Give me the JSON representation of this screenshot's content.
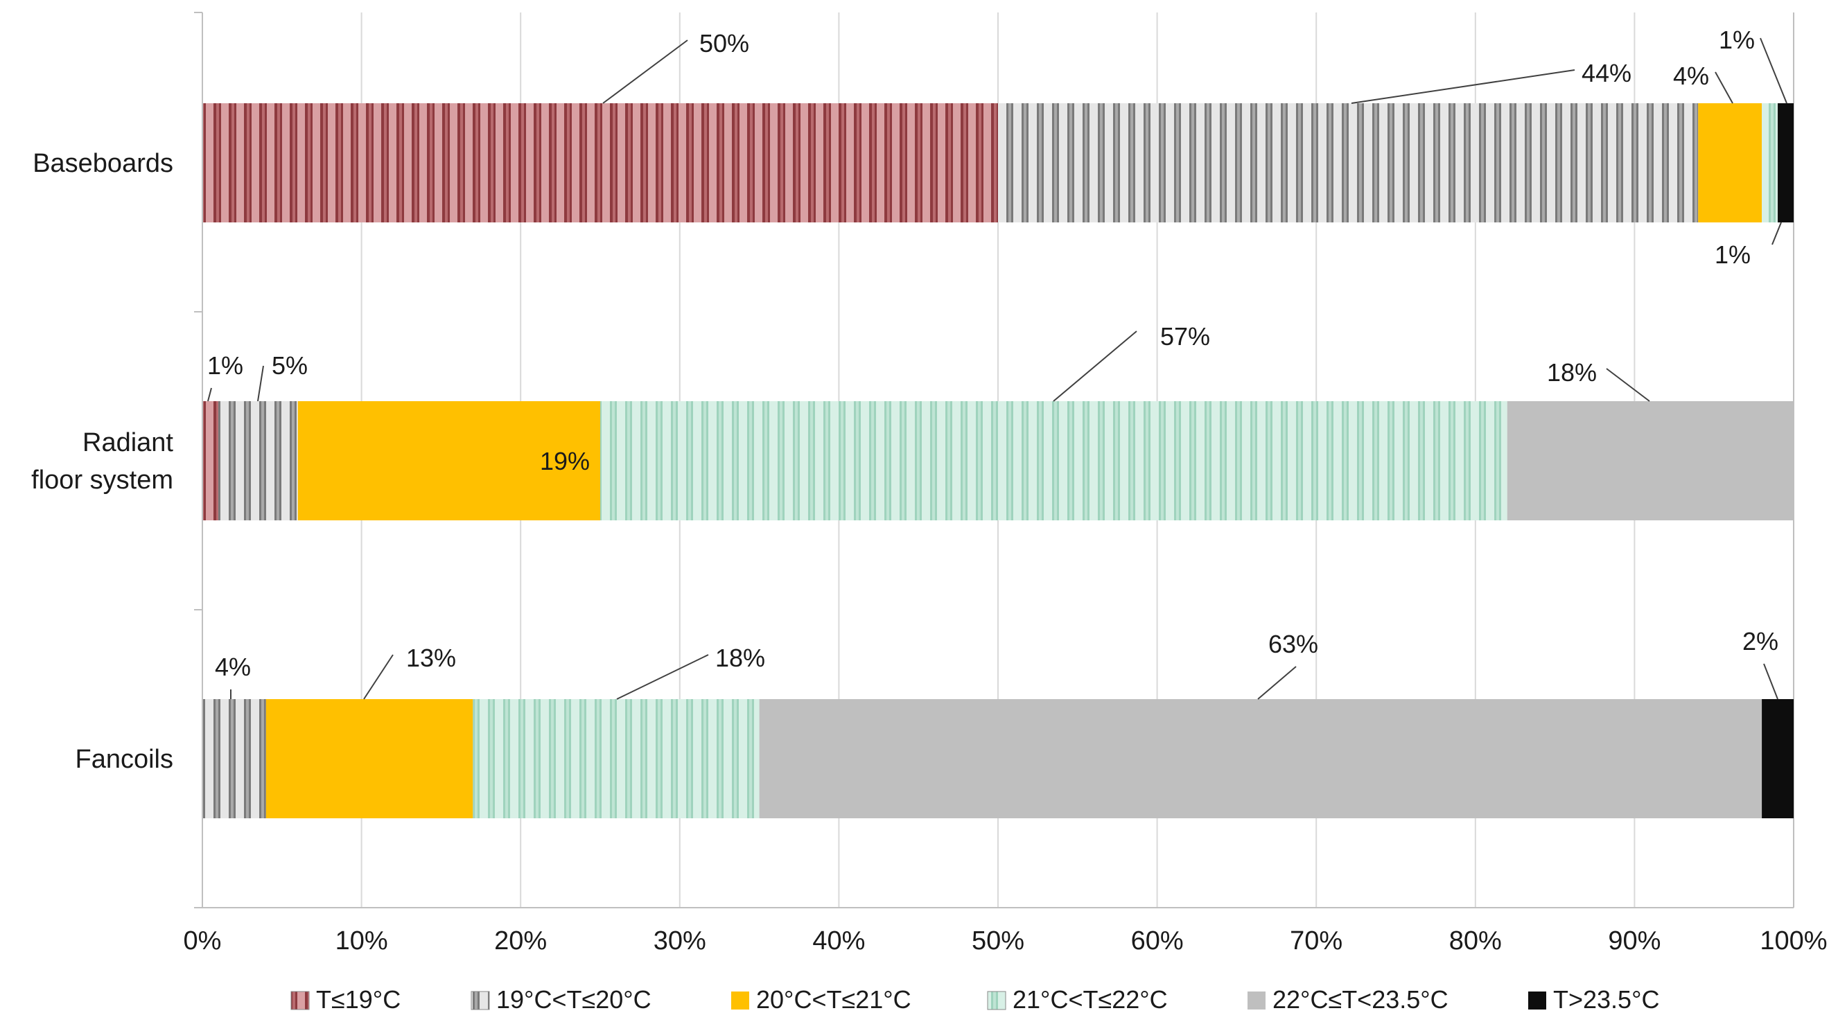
{
  "chart_data": {
    "type": "bar",
    "orientation": "horizontal",
    "stacked": true,
    "percent": true,
    "categories": [
      "Baseboards",
      "Radiant\nfloor system",
      "Fancoils"
    ],
    "xlim": [
      0,
      100
    ],
    "xticks": [
      "0%",
      "10%",
      "20%",
      "30%",
      "40%",
      "50%",
      "60%",
      "70%",
      "80%",
      "90%",
      "100%"
    ],
    "grid": true,
    "legend_position": "bottom",
    "series": [
      {
        "name": "T≤19°C",
        "color": "#a8555a",
        "pattern": "stripes-red",
        "values": [
          50,
          1,
          0
        ]
      },
      {
        "name": "19°C<T≤20°C",
        "color": "#9a9a9a",
        "pattern": "stripes-gray",
        "values": [
          44,
          5,
          4
        ]
      },
      {
        "name": "20°C<T≤21°C",
        "color": "#ffc000",
        "pattern": "solid",
        "values": [
          4,
          19,
          13
        ]
      },
      {
        "name": "21°C<T≤22°C",
        "color": "#b9e3d2",
        "pattern": "stripes-green",
        "values": [
          1,
          57,
          18
        ]
      },
      {
        "name": "22°C≤T<23.5°C",
        "color": "#bfbfbf",
        "pattern": "solid",
        "values": [
          0,
          18,
          63
        ]
      },
      {
        "name": "T>23.5°C",
        "color": "#0d0d0d",
        "pattern": "solid",
        "values": [
          1,
          0,
          2
        ]
      }
    ],
    "data_labels": [
      {
        "text": "50%",
        "category": 0,
        "series": 0
      },
      {
        "text": "44%",
        "category": 0,
        "series": 1
      },
      {
        "text": "4%",
        "category": 0,
        "series": 2
      },
      {
        "text": "1%",
        "category": 0,
        "series": 3
      },
      {
        "text": "1%",
        "category": 0,
        "series": 5
      },
      {
        "text": "1%",
        "category": 1,
        "series": 0
      },
      {
        "text": "5%",
        "category": 1,
        "series": 1
      },
      {
        "text": "19%",
        "category": 1,
        "series": 2
      },
      {
        "text": "57%",
        "category": 1,
        "series": 3
      },
      {
        "text": "18%",
        "category": 1,
        "series": 4
      },
      {
        "text": "4%",
        "category": 2,
        "series": 1
      },
      {
        "text": "13%",
        "category": 2,
        "series": 2
      },
      {
        "text": "18%",
        "category": 2,
        "series": 3
      },
      {
        "text": "63%",
        "category": 2,
        "series": 4
      },
      {
        "text": "2%",
        "category": 2,
        "series": 5
      }
    ]
  }
}
